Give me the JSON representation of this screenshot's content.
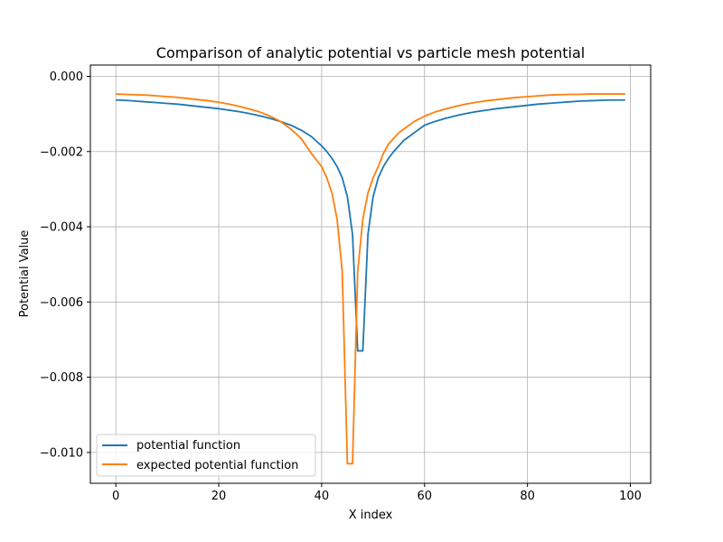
{
  "chart_data": {
    "type": "line",
    "title": "Comparison of analytic potential vs particle mesh potential",
    "xlabel": "X index",
    "ylabel": "Potential Value",
    "xlim": [
      -4.95,
      103.95
    ],
    "ylim": [
      -0.01082,
      0.0003
    ],
    "grid": true,
    "legend_position": "lower-left",
    "x_ticks": [
      0,
      20,
      40,
      60,
      80,
      100
    ],
    "x_tick_labels": [
      "0",
      "20",
      "40",
      "60",
      "80",
      "100"
    ],
    "y_ticks": [
      0.0,
      -0.002,
      -0.004,
      -0.006,
      -0.008,
      -0.01
    ],
    "y_tick_labels": [
      "0.000",
      "−0.002",
      "−0.004",
      "−0.006",
      "−0.008",
      "−0.010"
    ],
    "x": [
      0,
      2,
      4,
      6,
      8,
      10,
      12,
      14,
      16,
      18,
      20,
      22,
      24,
      26,
      28,
      30,
      32,
      34,
      36,
      38,
      40,
      41,
      42,
      43,
      44,
      45,
      46,
      47,
      48,
      49,
      50,
      51,
      52,
      53,
      54,
      55,
      56,
      57,
      58,
      60,
      62,
      64,
      66,
      68,
      70,
      72,
      74,
      76,
      78,
      80,
      82,
      84,
      86,
      88,
      90,
      92,
      94,
      96,
      98,
      99
    ],
    "series": [
      {
        "name": "potential function",
        "color": "#1f77b4",
        "values": [
          -0.00063,
          -0.00064,
          -0.00066,
          -0.00068,
          -0.0007,
          -0.00072,
          -0.00074,
          -0.00077,
          -0.0008,
          -0.00083,
          -0.00086,
          -0.0009,
          -0.00094,
          -0.00099,
          -0.00105,
          -0.00112,
          -0.0012,
          -0.0013,
          -0.00143,
          -0.0016,
          -0.00185,
          -0.002,
          -0.00218,
          -0.0024,
          -0.0027,
          -0.0032,
          -0.0042,
          -0.0073,
          -0.0073,
          -0.0042,
          -0.0032,
          -0.0027,
          -0.0024,
          -0.00218,
          -0.002,
          -0.00185,
          -0.0017,
          -0.0016,
          -0.0015,
          -0.0013,
          -0.0012,
          -0.00112,
          -0.00105,
          -0.00099,
          -0.00094,
          -0.0009,
          -0.00086,
          -0.00083,
          -0.0008,
          -0.00077,
          -0.00074,
          -0.00072,
          -0.0007,
          -0.00068,
          -0.00066,
          -0.00065,
          -0.00064,
          -0.00063,
          -0.00063,
          -0.00063
        ]
      },
      {
        "name": "expected potential function",
        "color": "#ff7f0e",
        "values": [
          -0.00047,
          -0.00048,
          -0.00049,
          -0.0005,
          -0.00052,
          -0.00054,
          -0.00056,
          -0.00059,
          -0.00062,
          -0.00065,
          -0.00069,
          -0.00074,
          -0.0008,
          -0.00087,
          -0.00095,
          -0.00106,
          -0.0012,
          -0.0014,
          -0.00165,
          -0.00205,
          -0.0024,
          -0.0027,
          -0.0031,
          -0.0038,
          -0.0052,
          -0.0103,
          -0.0103,
          -0.0052,
          -0.0038,
          -0.0031,
          -0.0027,
          -0.0024,
          -0.00205,
          -0.0018,
          -0.00165,
          -0.0015,
          -0.0014,
          -0.0013,
          -0.0012,
          -0.00106,
          -0.00095,
          -0.00087,
          -0.0008,
          -0.00074,
          -0.00069,
          -0.00065,
          -0.00062,
          -0.00059,
          -0.00056,
          -0.00054,
          -0.00052,
          -0.0005,
          -0.00049,
          -0.00048,
          -0.00048,
          -0.00047,
          -0.00047,
          -0.00047,
          -0.00047,
          -0.00047
        ]
      }
    ]
  }
}
